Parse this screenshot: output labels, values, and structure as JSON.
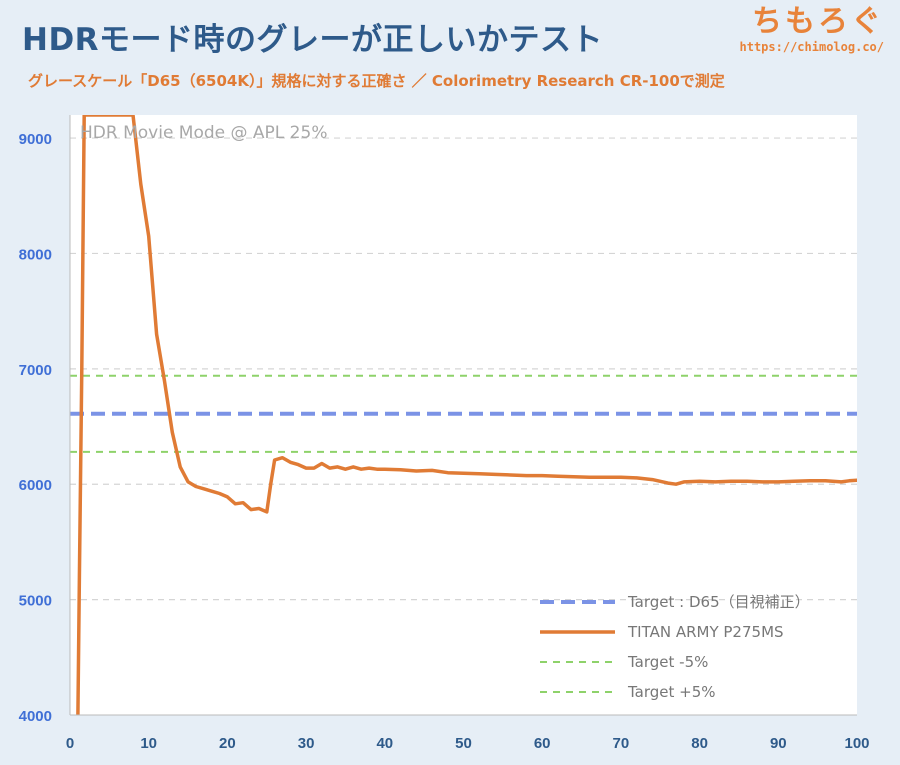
{
  "header": {
    "title": "HDRモード時のグレーが正しいかテスト",
    "subtitle": "グレースケール「D65（6504K）」規格に対する正確さ ／ Colorimetry Research CR-100で測定",
    "brand_logo": "ちもろぐ",
    "brand_url": "https://chimolog.co/"
  },
  "colors": {
    "target": "#7b93e6",
    "measured": "#e07b35",
    "tolerance": "#8ed26a",
    "grid": "#d5d5d5",
    "plot_bg": "#ffffff",
    "page_bg": "#e6eef6"
  },
  "chart_data": {
    "type": "line",
    "annotation": "HDR Movie Mode @ APL 25%",
    "xlim": [
      0,
      100
    ],
    "ylim": [
      4000,
      9200
    ],
    "x_ticks": [
      0,
      10,
      20,
      30,
      40,
      50,
      60,
      70,
      80,
      90,
      100
    ],
    "y_ticks": [
      4000,
      5000,
      6000,
      7000,
      8000,
      9000
    ],
    "grid": "horizontal",
    "legend_position": "bottom-right",
    "series": [
      {
        "name": "Target : D65（目視補正）",
        "style": "dashed-thick",
        "points": [
          [
            0,
            6610
          ],
          [
            100,
            6610
          ]
        ]
      },
      {
        "name": "TITAN ARMY P275MS",
        "style": "solid",
        "points": [
          [
            1,
            4000
          ],
          [
            1.2,
            5200
          ],
          [
            1.5,
            7000
          ],
          [
            1.8,
            9200
          ],
          [
            8,
            9200
          ],
          [
            9,
            8600
          ],
          [
            10,
            8150
          ],
          [
            11,
            7300
          ],
          [
            12,
            6900
          ],
          [
            13,
            6450
          ],
          [
            14,
            6150
          ],
          [
            15,
            6020
          ],
          [
            16,
            5980
          ],
          [
            17,
            5960
          ],
          [
            18,
            5940
          ],
          [
            19,
            5920
          ],
          [
            20,
            5890
          ],
          [
            21,
            5830
          ],
          [
            22,
            5840
          ],
          [
            23,
            5780
          ],
          [
            24,
            5790
          ],
          [
            25,
            5760
          ],
          [
            25.5,
            6000
          ],
          [
            26,
            6210
          ],
          [
            27,
            6230
          ],
          [
            28,
            6190
          ],
          [
            29,
            6170
          ],
          [
            30,
            6140
          ],
          [
            31,
            6140
          ],
          [
            32,
            6180
          ],
          [
            33,
            6140
          ],
          [
            34,
            6150
          ],
          [
            35,
            6130
          ],
          [
            36,
            6150
          ],
          [
            37,
            6130
          ],
          [
            38,
            6140
          ],
          [
            39,
            6130
          ],
          [
            40,
            6130
          ],
          [
            42,
            6125
          ],
          [
            44,
            6115
          ],
          [
            46,
            6120
          ],
          [
            48,
            6100
          ],
          [
            50,
            6095
          ],
          [
            52,
            6090
          ],
          [
            54,
            6085
          ],
          [
            56,
            6080
          ],
          [
            58,
            6075
          ],
          [
            60,
            6075
          ],
          [
            62,
            6070
          ],
          [
            64,
            6065
          ],
          [
            66,
            6060
          ],
          [
            68,
            6060
          ],
          [
            70,
            6060
          ],
          [
            72,
            6055
          ],
          [
            74,
            6040
          ],
          [
            76,
            6010
          ],
          [
            77,
            6000
          ],
          [
            78,
            6020
          ],
          [
            80,
            6025
          ],
          [
            82,
            6020
          ],
          [
            84,
            6025
          ],
          [
            86,
            6025
          ],
          [
            88,
            6020
          ],
          [
            90,
            6020
          ],
          [
            92,
            6025
          ],
          [
            94,
            6030
          ],
          [
            96,
            6030
          ],
          [
            98,
            6020
          ],
          [
            99,
            6030
          ],
          [
            100,
            6035
          ]
        ]
      },
      {
        "name": "Target -5%",
        "style": "dashed-thin",
        "points": [
          [
            0,
            6280
          ],
          [
            100,
            6280
          ]
        ]
      },
      {
        "name": "Target +5%",
        "style": "dashed-thin",
        "points": [
          [
            0,
            6940
          ],
          [
            100,
            6940
          ]
        ]
      }
    ]
  }
}
